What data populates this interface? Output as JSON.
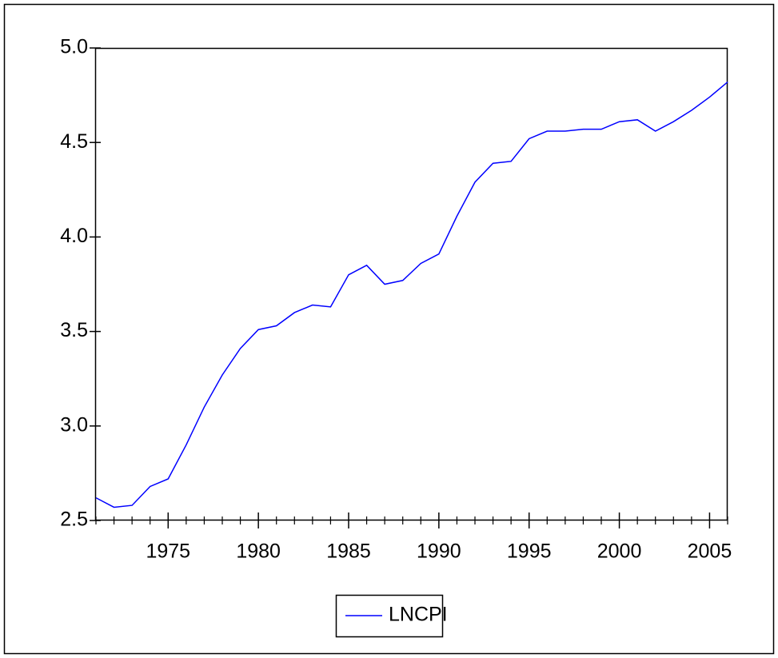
{
  "chart_data": {
    "type": "line",
    "x": [
      1971,
      1972,
      1973,
      1974,
      1975,
      1976,
      1977,
      1978,
      1979,
      1980,
      1981,
      1982,
      1983,
      1984,
      1985,
      1986,
      1987,
      1988,
      1989,
      1990,
      1991,
      1992,
      1993,
      1994,
      1995,
      1996,
      1997,
      1998,
      1999,
      2000,
      2001,
      2002,
      2003,
      2004,
      2005,
      2006
    ],
    "series": [
      {
        "name": "LNCPI",
        "color": "#0000ff",
        "values": [
          2.62,
          2.57,
          2.58,
          2.68,
          2.72,
          2.9,
          3.1,
          3.27,
          3.41,
          3.51,
          3.53,
          3.6,
          3.64,
          3.63,
          3.8,
          3.85,
          3.75,
          3.77,
          3.86,
          3.91,
          4.11,
          4.29,
          4.39,
          4.4,
          4.52,
          4.56,
          4.56,
          4.57,
          4.57,
          4.61,
          4.62,
          4.56,
          4.61,
          4.67,
          4.74,
          4.82
        ]
      }
    ],
    "xlim": [
      1971,
      2006
    ],
    "xticks": [
      1975,
      1980,
      1985,
      1990,
      1995,
      2000,
      2005
    ],
    "xminorticks": [
      1971,
      1972,
      1973,
      1974,
      1976,
      1977,
      1978,
      1979,
      1981,
      1982,
      1983,
      1984,
      1986,
      1987,
      1988,
      1989,
      1991,
      1992,
      1993,
      1994,
      1996,
      1997,
      1998,
      1999,
      2001,
      2002,
      2003,
      2004,
      2006
    ],
    "ylim": [
      2.5,
      5.0
    ],
    "yticks": [
      {
        "value": 2.5,
        "label": "2.5"
      },
      {
        "value": 3.0,
        "label": "3.0"
      },
      {
        "value": 3.5,
        "label": "3.5"
      },
      {
        "value": 4.0,
        "label": "4.0"
      },
      {
        "value": 4.5,
        "label": "4.5"
      },
      {
        "value": 5.0,
        "label": "5.0"
      }
    ],
    "legend": "bottom"
  }
}
